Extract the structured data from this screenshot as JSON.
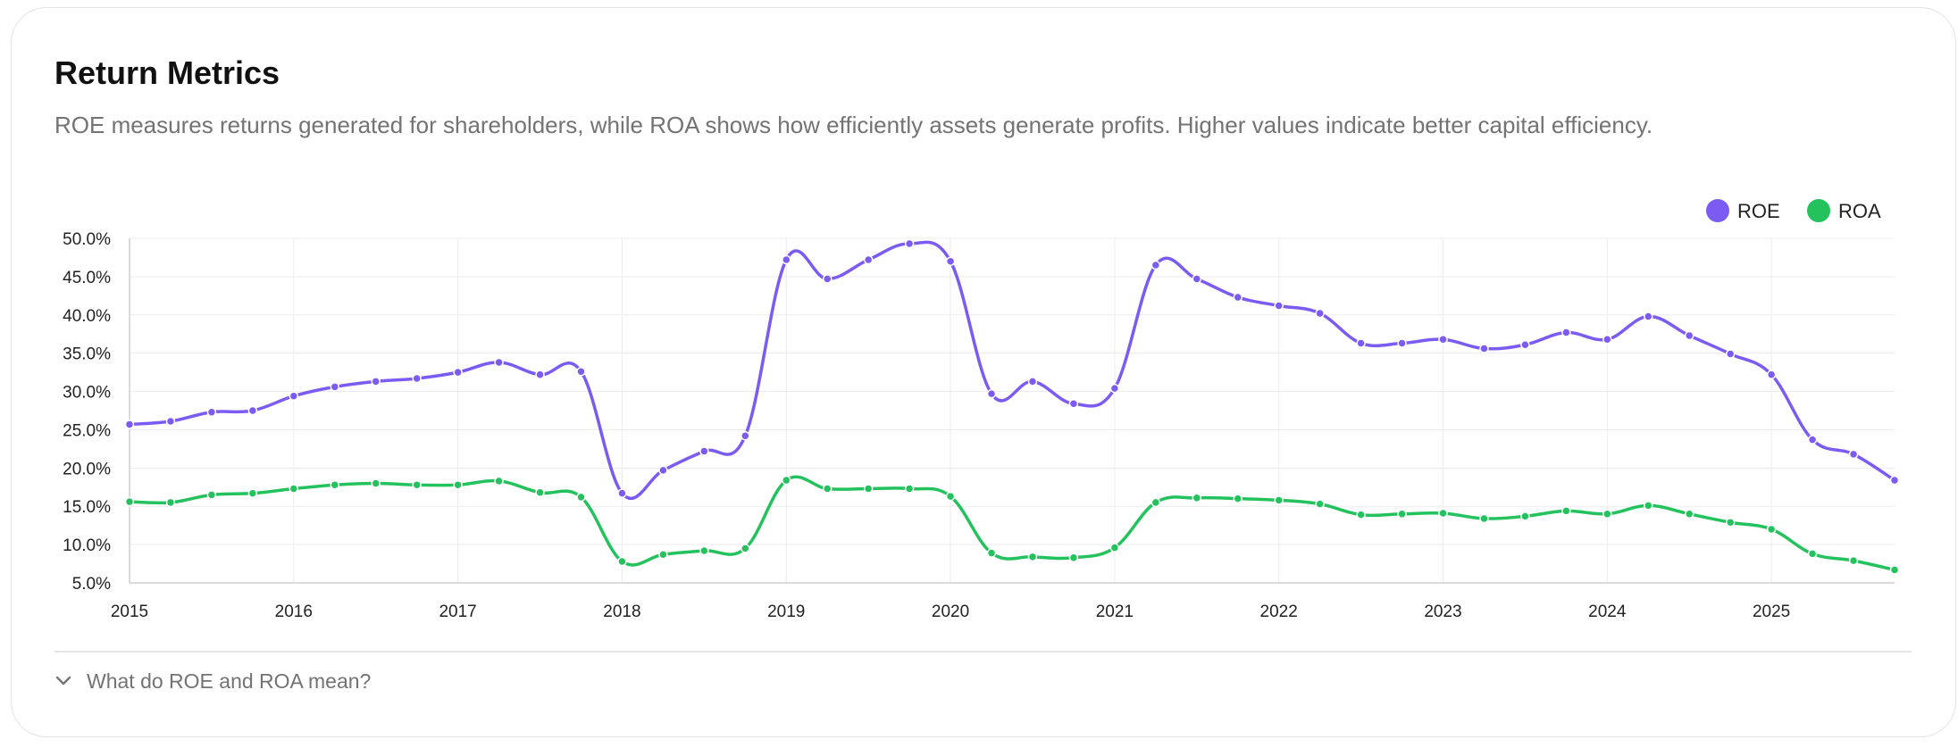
{
  "header": {
    "title": "Return Metrics",
    "subtitle": "ROE measures returns generated for shareholders, while ROA shows how efficiently assets generate profits. Higher values indicate better capital efficiency."
  },
  "faq": {
    "label": "What do ROE and ROA mean?",
    "icon": "chevron-down-icon"
  },
  "chart_data": {
    "type": "line",
    "title": "",
    "xlabel": "",
    "ylabel": "",
    "ylim": [
      5,
      50
    ],
    "y_ticks": [
      "5.0%",
      "10.0%",
      "15.0%",
      "20.0%",
      "25.0%",
      "30.0%",
      "35.0%",
      "40.0%",
      "45.0%",
      "50.0%"
    ],
    "x_tick_labels": [
      "2015",
      "2016",
      "2017",
      "2018",
      "2019",
      "2020",
      "2021",
      "2022",
      "2023",
      "2024",
      "2025"
    ],
    "x": [
      "2015 Q1",
      "2015 Q2",
      "2015 Q3",
      "2015 Q4",
      "2016 Q1",
      "2016 Q2",
      "2016 Q3",
      "2016 Q4",
      "2017 Q1",
      "2017 Q2",
      "2017 Q3",
      "2017 Q4",
      "2018 Q1",
      "2018 Q2",
      "2018 Q3",
      "2018 Q4",
      "2019 Q1",
      "2019 Q2",
      "2019 Q3",
      "2019 Q4",
      "2020 Q1",
      "2020 Q2",
      "2020 Q3",
      "2020 Q4",
      "2021 Q1",
      "2021 Q2",
      "2021 Q3",
      "2021 Q4",
      "2022 Q1",
      "2022 Q2",
      "2022 Q3",
      "2022 Q4",
      "2023 Q1",
      "2023 Q2",
      "2023 Q3",
      "2023 Q4",
      "2024 Q1",
      "2024 Q2",
      "2024 Q3",
      "2024 Q4",
      "2025 Q1",
      "2025 Q2",
      "2025 Q3",
      "2025 Q4"
    ],
    "series": [
      {
        "name": "ROE",
        "color": "#7b5bf2",
        "values": [
          25.7,
          26.1,
          27.3,
          27.5,
          29.4,
          30.6,
          31.3,
          31.7,
          32.5,
          33.8,
          32.2,
          32.6,
          16.7,
          19.7,
          22.2,
          24.2,
          47.2,
          44.7,
          47.2,
          49.3,
          47.0,
          29.7,
          31.3,
          28.4,
          30.4,
          46.5,
          44.7,
          42.3,
          41.2,
          40.2,
          36.3,
          36.3,
          36.8,
          35.6,
          36.1,
          37.7,
          36.8,
          39.8,
          37.3,
          34.9,
          32.2,
          23.7,
          21.8,
          18.4
        ]
      },
      {
        "name": "ROA",
        "color": "#23c25d",
        "values": [
          15.6,
          15.5,
          16.5,
          16.7,
          17.3,
          17.8,
          18.0,
          17.8,
          17.8,
          18.3,
          16.8,
          16.2,
          7.8,
          8.7,
          9.2,
          9.5,
          18.4,
          17.3,
          17.3,
          17.3,
          16.3,
          8.9,
          8.4,
          8.3,
          9.6,
          15.5,
          16.1,
          16.0,
          15.8,
          15.3,
          13.9,
          14.0,
          14.1,
          13.4,
          13.7,
          14.4,
          14.0,
          15.1,
          14.0,
          12.9,
          12.0,
          8.8,
          7.9,
          6.7
        ]
      }
    ],
    "legend": "top-right",
    "grid": true
  }
}
